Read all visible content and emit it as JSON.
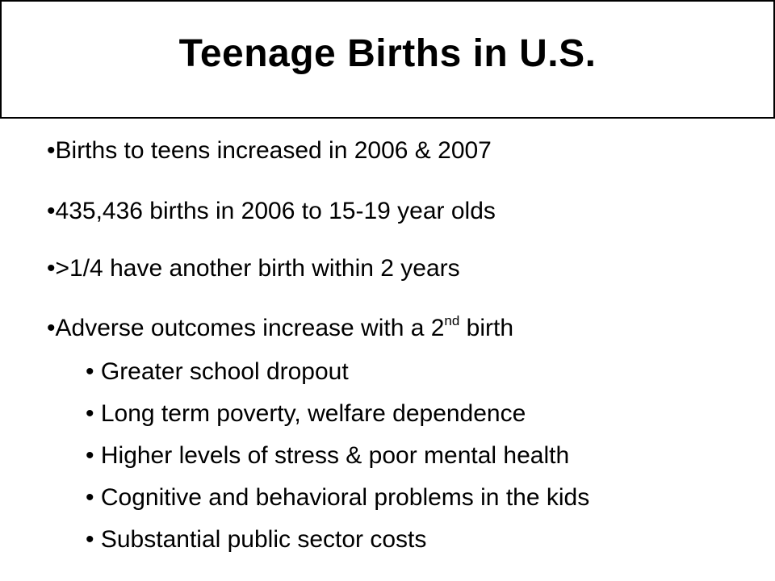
{
  "title": "Teenage Births in U.S.",
  "bullets": [
    {
      "marker": "•",
      "text": "Births to teens increased in 2006 & 2007"
    },
    {
      "marker": "•",
      "text": "435,436 births in 2006 to 15-19 year olds"
    },
    {
      "marker": "•",
      "text": ">1/4 have another birth within 2 years"
    },
    {
      "marker": "•",
      "text_before": "Adverse outcomes increase with a 2",
      "superscript": "nd",
      "text_after": " birth"
    }
  ],
  "sub_bullets": [
    {
      "marker": "•",
      "text": "Greater school dropout"
    },
    {
      "marker": "•",
      "text": "Long term poverty, welfare dependence"
    },
    {
      "marker": "•",
      "text": "Higher levels of stress & poor mental health"
    },
    {
      "marker": "•",
      "text": "Cognitive and behavioral problems in the kids"
    },
    {
      "marker": "•",
      "text": "Substantial public sector costs"
    }
  ]
}
